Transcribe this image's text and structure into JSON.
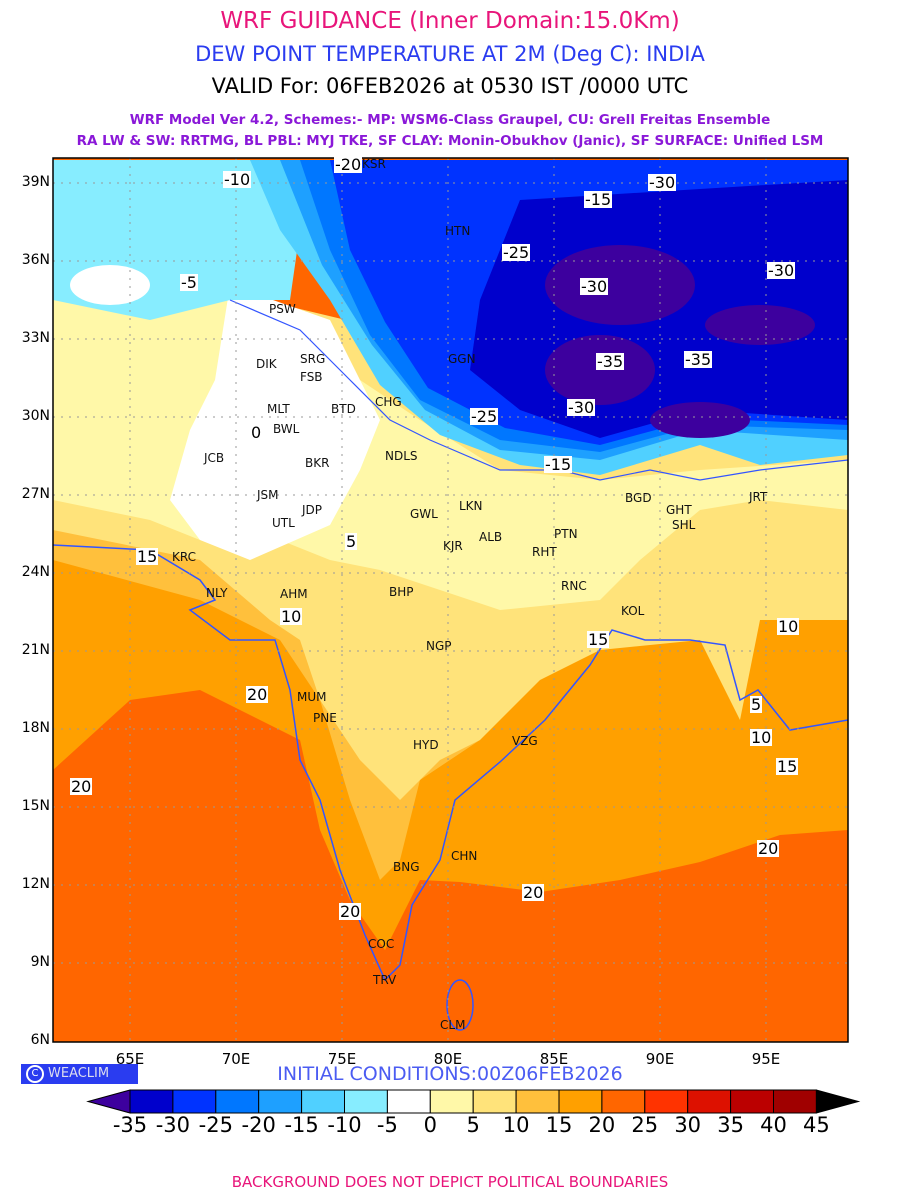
{
  "header": {
    "title": "WRF GUIDANCE (Inner Domain:15.0Km)",
    "subtitle": "DEW POINT TEMPERATURE AT 2M (Deg C): INDIA",
    "valid": "VALID For: 06FEB2026 at 0530 IST /0000 UTC",
    "model_line1": "WRF Model Ver 4.2, Schemes:- MP: WSM6-Class Graupel, CU: Grell Freitas Ensemble",
    "model_line2": "RA LW & SW: RRTMG, BL PBL: MYJ TKE, SF CLAY: Monin-Obukhov (Janic), SF SURFACE: Unified LSM"
  },
  "axes": {
    "lat_labels": [
      "39N",
      "36N",
      "33N",
      "30N",
      "27N",
      "24N",
      "21N",
      "18N",
      "15N",
      "12N",
      "9N",
      "6N"
    ],
    "lon_labels": [
      "65E",
      "70E",
      "75E",
      "80E",
      "85E",
      "90E",
      "95E"
    ]
  },
  "stations": [
    "KSR",
    "HTN",
    "PSW",
    "SRG",
    "DIK",
    "FSB",
    "MLT",
    "BWL",
    "BTD",
    "JCB",
    "BKR",
    "NDLS",
    "JSM",
    "JDP",
    "UTL",
    "GWL",
    "LKN",
    "KJR",
    "ALB",
    "PTN",
    "RHT",
    "RNC",
    "KOL",
    "BGD",
    "GHT",
    "SHL",
    "JRT",
    "AHM",
    "BHP",
    "NLY",
    "KRC",
    "NGP",
    "MUM",
    "PNE",
    "HYD",
    "VZG",
    "CHN",
    "BNG",
    "COC",
    "TRV",
    "CLM",
    "GGN",
    "CHG"
  ],
  "contour_labels": [
    "-20",
    "-25",
    "-30",
    "-35",
    "-30",
    "-35",
    "-30",
    "-25",
    "-15",
    "-10",
    "-5",
    "0",
    "5",
    "10",
    "15",
    "20",
    "10",
    "15",
    "20",
    "20",
    "15",
    "10",
    "5",
    "20",
    "20",
    "-30",
    "-15"
  ],
  "logo": {
    "symbol": "C",
    "text": "WEACLIM"
  },
  "initial_conditions": "INITIAL CONDITIONS:00Z06FEB2026",
  "colorbar": {
    "labels": [
      "-35",
      "-30",
      "-25",
      "-20",
      "-15",
      "-10",
      "-5",
      "0",
      "5",
      "10",
      "15",
      "20",
      "25",
      "30",
      "35",
      "40",
      "45"
    ],
    "colors": [
      "#3d009e",
      "#0000cc",
      "#0033ff",
      "#0077ff",
      "#1ea0ff",
      "#50d0ff",
      "#87edff",
      "#ffffff",
      "#fff8a8",
      "#ffe37a",
      "#ffc03c",
      "#ffa000",
      "#ff6600",
      "#ff3300",
      "#dd1100",
      "#bb0000",
      "#a00000",
      "#000000"
    ]
  },
  "footer": "BACKGROUND DOES NOT DEPICT POLITICAL BOUNDARIES"
}
